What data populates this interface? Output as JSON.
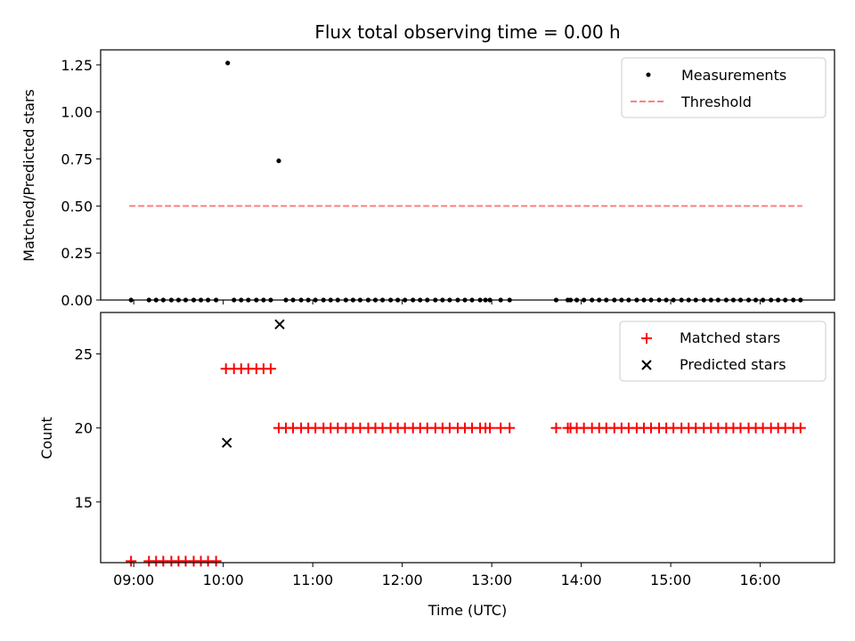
{
  "title": "Flux total observing time = 0.00 h",
  "xlabel": "Time (UTC)",
  "x_ticks": [
    {
      "v": 9,
      "label": "09:00"
    },
    {
      "v": 10,
      "label": "10:00"
    },
    {
      "v": 11,
      "label": "11:00"
    },
    {
      "v": 12,
      "label": "12:00"
    },
    {
      "v": 13,
      "label": "13:00"
    },
    {
      "v": 14,
      "label": "14:00"
    },
    {
      "v": 15,
      "label": "15:00"
    },
    {
      "v": 16,
      "label": "16:00"
    }
  ],
  "top_panel": {
    "ylabel": "Matched/Predicted stars",
    "y_ticks": [
      {
        "v": 0.0,
        "label": "0.00"
      },
      {
        "v": 0.25,
        "label": "0.25"
      },
      {
        "v": 0.5,
        "label": "0.50"
      },
      {
        "v": 0.75,
        "label": "0.75"
      },
      {
        "v": 1.0,
        "label": "1.00"
      },
      {
        "v": 1.25,
        "label": "1.25"
      }
    ],
    "legend": {
      "measurements": "Measurements",
      "threshold": "Threshold"
    }
  },
  "bottom_panel": {
    "ylabel": "Count",
    "y_ticks": [
      {
        "v": 15,
        "label": "15"
      },
      {
        "v": 20,
        "label": "20"
      },
      {
        "v": 25,
        "label": "25"
      }
    ],
    "legend": {
      "matched": "Matched stars",
      "predicted": "Predicted stars"
    }
  },
  "colors": {
    "measurements": "#000000",
    "threshold": "#ff7f7f",
    "matched": "#ff0000",
    "predicted": "#000000"
  },
  "chart_data": {
    "type": "scatter",
    "title": "Flux total observing time = 0.00 h",
    "xlabel": "Time (UTC)",
    "xlim": [
      8.63,
      16.83
    ],
    "panels": [
      {
        "name": "ratio",
        "ylabel": "Matched/Predicted stars",
        "ylim": [
          0.0,
          1.33
        ],
        "series": [
          {
            "name": "Measurements",
            "marker": "dot",
            "points": [
              [
                8.97,
                0.0
              ],
              [
                9.17,
                0.0
              ],
              [
                9.25,
                0.0
              ],
              [
                9.33,
                0.0
              ],
              [
                9.42,
                0.0
              ],
              [
                9.5,
                0.0
              ],
              [
                9.58,
                0.0
              ],
              [
                9.67,
                0.0
              ],
              [
                9.75,
                0.0
              ],
              [
                9.83,
                0.0
              ],
              [
                9.92,
                0.0
              ],
              [
                10.05,
                1.26
              ],
              [
                10.62,
                0.74
              ],
              [
                10.12,
                0.0
              ],
              [
                10.2,
                0.0
              ],
              [
                10.28,
                0.0
              ],
              [
                10.37,
                0.0
              ],
              [
                10.45,
                0.0
              ],
              [
                10.53,
                0.0
              ],
              [
                10.7,
                0.0
              ],
              [
                10.78,
                0.0
              ],
              [
                10.87,
                0.0
              ],
              [
                10.95,
                0.0
              ],
              [
                11.03,
                0.0
              ],
              [
                11.12,
                0.0
              ],
              [
                11.2,
                0.0
              ],
              [
                11.28,
                0.0
              ],
              [
                11.37,
                0.0
              ],
              [
                11.45,
                0.0
              ],
              [
                11.53,
                0.0
              ],
              [
                11.62,
                0.0
              ],
              [
                11.7,
                0.0
              ],
              [
                11.78,
                0.0
              ],
              [
                11.87,
                0.0
              ],
              [
                11.95,
                0.0
              ],
              [
                12.03,
                0.0
              ],
              [
                12.12,
                0.0
              ],
              [
                12.2,
                0.0
              ],
              [
                12.28,
                0.0
              ],
              [
                12.37,
                0.0
              ],
              [
                12.45,
                0.0
              ],
              [
                12.53,
                0.0
              ],
              [
                12.62,
                0.0
              ],
              [
                12.7,
                0.0
              ],
              [
                12.78,
                0.0
              ],
              [
                12.87,
                0.0
              ],
              [
                12.93,
                0.0
              ],
              [
                12.98,
                0.0
              ],
              [
                13.1,
                0.0
              ],
              [
                13.2,
                0.0
              ],
              [
                13.72,
                0.0
              ],
              [
                13.85,
                0.0
              ],
              [
                13.88,
                0.0
              ],
              [
                13.95,
                0.0
              ],
              [
                14.03,
                0.0
              ],
              [
                14.12,
                0.0
              ],
              [
                14.2,
                0.0
              ],
              [
                14.28,
                0.0
              ],
              [
                14.37,
                0.0
              ],
              [
                14.45,
                0.0
              ],
              [
                14.53,
                0.0
              ],
              [
                14.62,
                0.0
              ],
              [
                14.7,
                0.0
              ],
              [
                14.78,
                0.0
              ],
              [
                14.87,
                0.0
              ],
              [
                14.95,
                0.0
              ],
              [
                15.03,
                0.0
              ],
              [
                15.12,
                0.0
              ],
              [
                15.2,
                0.0
              ],
              [
                15.28,
                0.0
              ],
              [
                15.37,
                0.0
              ],
              [
                15.45,
                0.0
              ],
              [
                15.53,
                0.0
              ],
              [
                15.62,
                0.0
              ],
              [
                15.7,
                0.0
              ],
              [
                15.78,
                0.0
              ],
              [
                15.87,
                0.0
              ],
              [
                15.95,
                0.0
              ],
              [
                16.03,
                0.0
              ],
              [
                16.12,
                0.0
              ],
              [
                16.2,
                0.0
              ],
              [
                16.28,
                0.0
              ],
              [
                16.37,
                0.0
              ],
              [
                16.45,
                0.0
              ]
            ]
          },
          {
            "name": "Threshold",
            "marker": "dashed-line",
            "points": [
              [
                8.95,
                0.5
              ],
              [
                16.47,
                0.5
              ]
            ]
          }
        ]
      },
      {
        "name": "counts",
        "ylabel": "Count",
        "ylim": [
          10.9,
          27.8
        ],
        "series": [
          {
            "name": "Matched stars",
            "marker": "plus",
            "points": [
              [
                8.97,
                11
              ],
              [
                9.17,
                11
              ],
              [
                9.25,
                11
              ],
              [
                9.33,
                11
              ],
              [
                9.42,
                11
              ],
              [
                9.5,
                11
              ],
              [
                9.58,
                11
              ],
              [
                9.67,
                11
              ],
              [
                9.75,
                11
              ],
              [
                9.83,
                11
              ],
              [
                9.92,
                11
              ],
              [
                10.03,
                24
              ],
              [
                10.12,
                24
              ],
              [
                10.2,
                24
              ],
              [
                10.28,
                24
              ],
              [
                10.37,
                24
              ],
              [
                10.45,
                24
              ],
              [
                10.53,
                24
              ],
              [
                10.62,
                20
              ],
              [
                10.7,
                20
              ],
              [
                10.78,
                20
              ],
              [
                10.87,
                20
              ],
              [
                10.95,
                20
              ],
              [
                11.03,
                20
              ],
              [
                11.12,
                20
              ],
              [
                11.2,
                20
              ],
              [
                11.28,
                20
              ],
              [
                11.37,
                20
              ],
              [
                11.45,
                20
              ],
              [
                11.53,
                20
              ],
              [
                11.62,
                20
              ],
              [
                11.7,
                20
              ],
              [
                11.78,
                20
              ],
              [
                11.87,
                20
              ],
              [
                11.95,
                20
              ],
              [
                12.03,
                20
              ],
              [
                12.12,
                20
              ],
              [
                12.2,
                20
              ],
              [
                12.28,
                20
              ],
              [
                12.37,
                20
              ],
              [
                12.45,
                20
              ],
              [
                12.53,
                20
              ],
              [
                12.62,
                20
              ],
              [
                12.7,
                20
              ],
              [
                12.78,
                20
              ],
              [
                12.87,
                20
              ],
              [
                12.93,
                20
              ],
              [
                12.98,
                20
              ],
              [
                13.1,
                20
              ],
              [
                13.2,
                20
              ],
              [
                13.72,
                20
              ],
              [
                13.85,
                20
              ],
              [
                13.88,
                20
              ],
              [
                13.95,
                20
              ],
              [
                14.03,
                20
              ],
              [
                14.12,
                20
              ],
              [
                14.2,
                20
              ],
              [
                14.28,
                20
              ],
              [
                14.37,
                20
              ],
              [
                14.45,
                20
              ],
              [
                14.53,
                20
              ],
              [
                14.62,
                20
              ],
              [
                14.7,
                20
              ],
              [
                14.78,
                20
              ],
              [
                14.87,
                20
              ],
              [
                14.95,
                20
              ],
              [
                15.03,
                20
              ],
              [
                15.12,
                20
              ],
              [
                15.2,
                20
              ],
              [
                15.28,
                20
              ],
              [
                15.37,
                20
              ],
              [
                15.45,
                20
              ],
              [
                15.53,
                20
              ],
              [
                15.62,
                20
              ],
              [
                15.7,
                20
              ],
              [
                15.78,
                20
              ],
              [
                15.87,
                20
              ],
              [
                15.95,
                20
              ],
              [
                16.03,
                20
              ],
              [
                16.12,
                20
              ],
              [
                16.2,
                20
              ],
              [
                16.28,
                20
              ],
              [
                16.37,
                20
              ],
              [
                16.45,
                20
              ]
            ]
          },
          {
            "name": "Predicted stars",
            "marker": "x",
            "points": [
              [
                10.04,
                19
              ],
              [
                10.63,
                27
              ]
            ]
          }
        ]
      }
    ]
  }
}
